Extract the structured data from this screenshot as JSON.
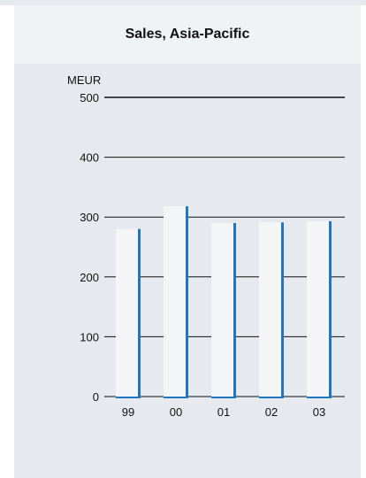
{
  "chart_data": {
    "type": "bar",
    "title": "Sales, Asia-Pacific",
    "ylabel": "MEUR",
    "xlabel": "",
    "categories": [
      "99",
      "00",
      "01",
      "02",
      "03"
    ],
    "values": [
      280,
      318,
      290,
      291,
      293
    ],
    "ylim": [
      0,
      500
    ],
    "yticks": [
      0,
      100,
      200,
      300,
      400,
      500
    ],
    "grid": true,
    "colors": {
      "bar": "#f3f5f6",
      "bar_edge": "#1f77c1",
      "grid": "#111111",
      "background": "#e6e9ed",
      "title_band": "#f0f3f5"
    }
  }
}
